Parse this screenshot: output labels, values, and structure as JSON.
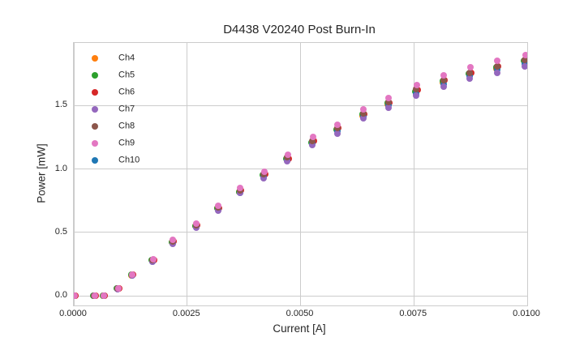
{
  "title": "D4438 V20240 Post Burn-In",
  "chart_data": {
    "type": "scatter",
    "title": "D4438 V20240 Post Burn-In",
    "xlabel": "Current [A]",
    "ylabel": "Power [mW]",
    "xlim": [
      0.0,
      0.01
    ],
    "ylim": [
      -0.075,
      1.993
    ],
    "x_ticks": [
      0.0,
      0.0025,
      0.005,
      0.0075,
      0.01
    ],
    "x_tick_labels": [
      "0.0000",
      "0.0025",
      "0.0050",
      "0.0075",
      "0.0100"
    ],
    "y_ticks": [
      0.0,
      0.5,
      1.0,
      1.5
    ],
    "y_tick_labels": [
      "0.0",
      "0.5",
      "1.0",
      "1.5"
    ],
    "grid": true,
    "legend_position": "upper-left",
    "x": [
      0.0,
      0.00045,
      0.00066,
      0.00097,
      0.00128,
      0.00174,
      0.00218,
      0.0027,
      0.00318,
      0.00366,
      0.00419,
      0.00471,
      0.00526,
      0.00581,
      0.00638,
      0.00694,
      0.00755,
      0.00815,
      0.00873,
      0.00933,
      0.00995
    ],
    "series": [
      {
        "name": "Ch4",
        "color": "#ff7f0e",
        "values": [
          0.0,
          0.0,
          0.0,
          0.06,
          0.16,
          0.28,
          0.42,
          0.55,
          0.69,
          0.82,
          0.95,
          1.08,
          1.21,
          1.31,
          1.42,
          1.51,
          1.61,
          1.68,
          1.75,
          1.79,
          1.84
        ]
      },
      {
        "name": "Ch5",
        "color": "#2ca02c",
        "values": [
          0.0,
          0.0,
          0.0,
          0.06,
          0.17,
          0.28,
          0.42,
          0.55,
          0.69,
          0.82,
          0.95,
          1.08,
          1.21,
          1.31,
          1.43,
          1.52,
          1.61,
          1.69,
          1.75,
          1.8,
          1.85
        ]
      },
      {
        "name": "Ch6",
        "color": "#d62728",
        "values": [
          0.0,
          0.0,
          0.0,
          0.06,
          0.17,
          0.28,
          0.43,
          0.56,
          0.69,
          0.83,
          0.96,
          1.08,
          1.22,
          1.32,
          1.43,
          1.52,
          1.62,
          1.7,
          1.76,
          1.81,
          1.85
        ]
      },
      {
        "name": "Ch7",
        "color": "#9467bd",
        "values": [
          0.0,
          0.0,
          0.0,
          0.05,
          0.16,
          0.27,
          0.41,
          0.54,
          0.67,
          0.81,
          0.93,
          1.06,
          1.19,
          1.28,
          1.4,
          1.48,
          1.58,
          1.65,
          1.71,
          1.76,
          1.81
        ]
      },
      {
        "name": "Ch8",
        "color": "#8c564b",
        "values": [
          0.0,
          0.0,
          0.0,
          0.06,
          0.17,
          0.28,
          0.43,
          0.56,
          0.7,
          0.83,
          0.96,
          1.09,
          1.22,
          1.32,
          1.44,
          1.53,
          1.63,
          1.7,
          1.76,
          1.81,
          1.86
        ]
      },
      {
        "name": "Ch9",
        "color": "#e377c2",
        "values": [
          0.0,
          0.0,
          0.0,
          0.06,
          0.17,
          0.29,
          0.44,
          0.57,
          0.71,
          0.85,
          0.98,
          1.11,
          1.25,
          1.35,
          1.47,
          1.56,
          1.66,
          1.74,
          1.8,
          1.85,
          1.9
        ]
      },
      {
        "name": "Ch10",
        "color": "#1f77b4",
        "values": [
          0.0,
          0.0,
          0.0,
          0.06,
          0.16,
          0.27,
          0.42,
          0.55,
          0.68,
          0.81,
          0.94,
          1.07,
          1.2,
          1.3,
          1.41,
          1.5,
          1.59,
          1.67,
          1.73,
          1.78,
          1.83
        ]
      }
    ]
  },
  "style": {
    "grid_color": "#cccccc",
    "spine_color": "#cccccc",
    "text_color": "#262626",
    "background_color": "#ffffff"
  }
}
